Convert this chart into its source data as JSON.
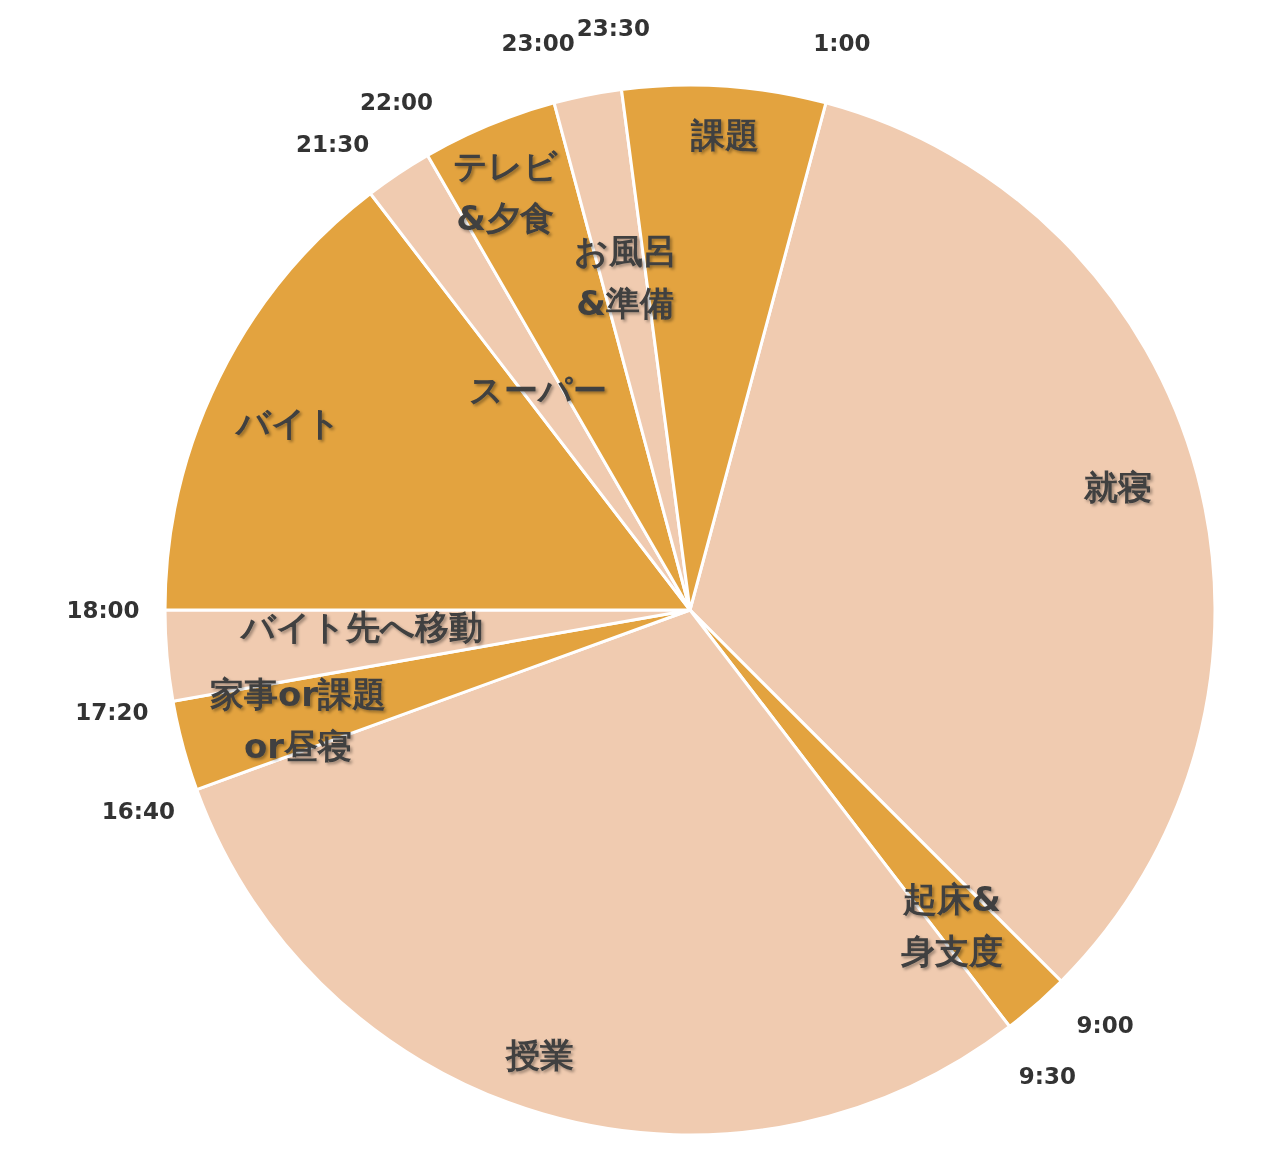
{
  "chart_data": {
    "type": "pie",
    "categories": [
      "就寝",
      "起床&\n身支度",
      "授業",
      "家事or課題\nor昼寝",
      "バイト先へ移動",
      "バイト",
      "スーパー",
      "テレビ\n&夕食",
      "お風呂\n&準備",
      "課題"
    ],
    "values": [
      33.334,
      2.083,
      29.861,
      2.778,
      2.778,
      14.583,
      2.083,
      4.167,
      2.083,
      6.25
    ],
    "colors": [
      "#f0cbb0",
      "#e3a33f",
      "#f0cbb0",
      "#e3a33f",
      "#f0cbb0",
      "#e3a33f",
      "#f0cbb0",
      "#e3a33f",
      "#f0cbb0",
      "#e3a33f"
    ],
    "annotations": [
      "1:00",
      "9:00",
      "9:30",
      "16:40",
      "17:20",
      "18:00",
      "21:30",
      "22:00",
      "23:00",
      "23:30"
    ]
  }
}
